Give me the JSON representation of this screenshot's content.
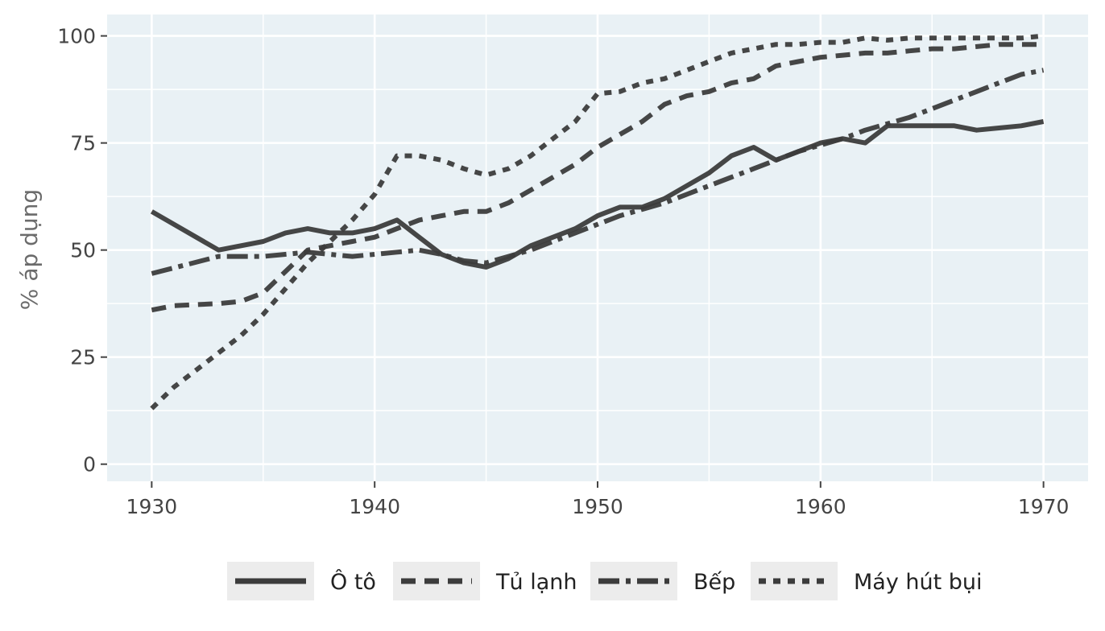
{
  "chart_data": {
    "type": "line",
    "title": "",
    "xlabel": "",
    "ylabel": "% áp dụng",
    "xlim": [
      1928,
      1972
    ],
    "ylim": [
      -4,
      105
    ],
    "x_ticks": [
      1930,
      1940,
      1950,
      1960,
      1970
    ],
    "x_tick_labels": [
      "1930",
      "1940",
      "1950",
      "1960",
      "1970"
    ],
    "y_ticks": [
      0,
      25,
      50,
      75,
      100
    ],
    "y_tick_labels": [
      "0",
      "25",
      "50",
      "75",
      "100"
    ],
    "grid": true,
    "panel_background": "#e9f1f5",
    "line_color": "#3c3c3c",
    "legend_position": "bottom",
    "series": [
      {
        "name": "Ô tô",
        "linetype": "solid",
        "x": [
          1930,
          1933,
          1935,
          1936,
          1937,
          1938,
          1939,
          1940,
          1941,
          1942,
          1943,
          1944,
          1945,
          1946,
          1947,
          1948,
          1949,
          1950,
          1951,
          1952,
          1953,
          1954,
          1955,
          1956,
          1957,
          1958,
          1959,
          1960,
          1961,
          1962,
          1963,
          1964,
          1965,
          1966,
          1967,
          1968,
          1969,
          1970
        ],
        "y": [
          59,
          50,
          52,
          54,
          55,
          54,
          54,
          55,
          57,
          53,
          49,
          47,
          46,
          48,
          51,
          53,
          55,
          58,
          60,
          60,
          62,
          65,
          68,
          72,
          74,
          71,
          73,
          75,
          76,
          75,
          79,
          79,
          79,
          79,
          78,
          78.5,
          79,
          80
        ]
      },
      {
        "name": "Tủ lạnh",
        "linetype": "dashed",
        "x": [
          1930,
          1931,
          1933,
          1934,
          1935,
          1936,
          1937,
          1938,
          1939,
          1940,
          1941,
          1942,
          1943,
          1944,
          1945,
          1946,
          1947,
          1948,
          1949,
          1950,
          1951,
          1952,
          1953,
          1954,
          1955,
          1956,
          1957,
          1958,
          1959,
          1960,
          1961,
          1962,
          1963,
          1964,
          1965,
          1966,
          1967,
          1968,
          1969,
          1970
        ],
        "y": [
          36,
          37,
          37.5,
          38,
          40,
          45,
          50,
          51,
          52,
          53,
          55,
          57,
          58,
          59,
          59,
          61,
          64,
          67,
          70,
          74,
          77,
          80,
          84,
          86,
          87,
          89,
          90,
          93,
          94,
          95,
          95.5,
          96,
          96,
          96.5,
          97,
          97,
          97.5,
          98,
          98,
          98
        ]
      },
      {
        "name": "Bếp",
        "linetype": "longdash",
        "x": [
          1930,
          1933,
          1935,
          1937,
          1938,
          1939,
          1940,
          1941,
          1942,
          1943,
          1944,
          1945,
          1946,
          1947,
          1948,
          1949,
          1950,
          1951,
          1952,
          1953,
          1954,
          1955,
          1956,
          1957,
          1958,
          1959,
          1960,
          1961,
          1962,
          1963,
          1964,
          1965,
          1966,
          1967,
          1968,
          1969,
          1970
        ],
        "y": [
          44.5,
          48.5,
          48.5,
          49.5,
          49,
          48.5,
          49,
          49.5,
          50,
          49,
          47.5,
          47,
          48.5,
          50,
          52,
          54,
          56,
          58,
          59.5,
          61,
          63,
          65,
          67,
          69,
          71,
          73,
          74.5,
          76,
          78,
          79.5,
          81,
          83,
          85,
          87,
          89,
          91,
          92
        ]
      },
      {
        "name": "Máy hút bụi",
        "linetype": "dotted",
        "x": [
          1930,
          1931,
          1932,
          1933,
          1934,
          1935,
          1936,
          1937,
          1938,
          1939,
          1940,
          1941,
          1942,
          1943,
          1944,
          1945,
          1946,
          1947,
          1948,
          1949,
          1950,
          1951,
          1952,
          1953,
          1954,
          1955,
          1956,
          1957,
          1958,
          1959,
          1960,
          1961,
          1962,
          1963,
          1964,
          1965,
          1966,
          1967,
          1968,
          1969,
          1970
        ],
        "y": [
          13,
          18,
          22,
          26,
          30,
          35,
          41,
          47,
          52,
          57,
          63,
          72,
          72,
          71,
          69,
          67.5,
          69,
          72,
          76,
          80,
          86.5,
          87,
          89,
          90,
          92,
          94,
          96,
          97,
          98,
          98,
          98.5,
          98.5,
          99.5,
          99,
          99.5,
          99.5,
          99.5,
          99.5,
          99.5,
          99.5,
          100
        ]
      }
    ]
  }
}
